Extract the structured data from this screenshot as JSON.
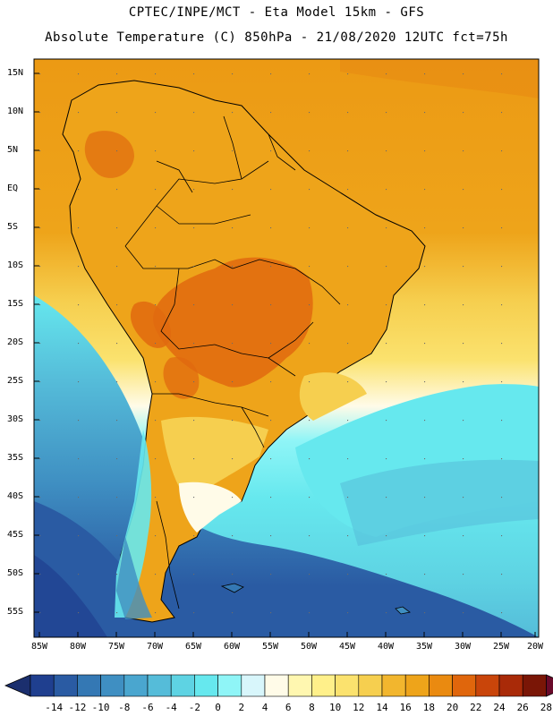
{
  "header": {
    "line1": "CPTEC/INPE/MCT -  Eta Model 15km - GFS",
    "line2": "Absolute Temperature (C) 850hPa - 21/08/2020 12UTC fct=75h"
  },
  "axes": {
    "lat_labels": [
      "15N",
      "10N",
      "5N",
      "EQ",
      "5S",
      "10S",
      "15S",
      "20S",
      "25S",
      "30S",
      "35S",
      "40S",
      "45S",
      "50S",
      "55S"
    ],
    "lon_labels": [
      "85W",
      "80W",
      "75W",
      "70W",
      "65W",
      "60W",
      "55W",
      "50W",
      "45W",
      "40W",
      "35W",
      "30W",
      "25W",
      "20W"
    ]
  },
  "colorbar": {
    "labels": [
      "-14",
      "-12",
      "-10",
      "-8",
      "-6",
      "-4",
      "-2",
      "0",
      "2",
      "4",
      "6",
      "8",
      "10",
      "12",
      "14",
      "16",
      "18",
      "20",
      "22",
      "24",
      "26",
      "28"
    ],
    "colors": [
      "#1f3f8f",
      "#2a5ba3",
      "#3478b4",
      "#3f8fc2",
      "#4aa6cf",
      "#55bcd9",
      "#5ed3e3",
      "#66e8ee",
      "#8ff5f7",
      "#d8f6fb",
      "#fffbe8",
      "#fff7b0",
      "#fff08a",
      "#fbe26e",
      "#f6cf4f",
      "#f2b62e",
      "#eea41a",
      "#ea8a10",
      "#e0660c",
      "#c9450a",
      "#a92a08",
      "#7a1606"
    ],
    "left_arrow": "#1b2f6e",
    "right_arrow": "#6a0a2a"
  },
  "colors": {
    "warm": "#eea41a",
    "hot": "#e06a0f",
    "yellow": "#f6cf4f",
    "pale": "#fffbe8",
    "cyan": "#66e8ee",
    "cold": "#3478b4"
  }
}
